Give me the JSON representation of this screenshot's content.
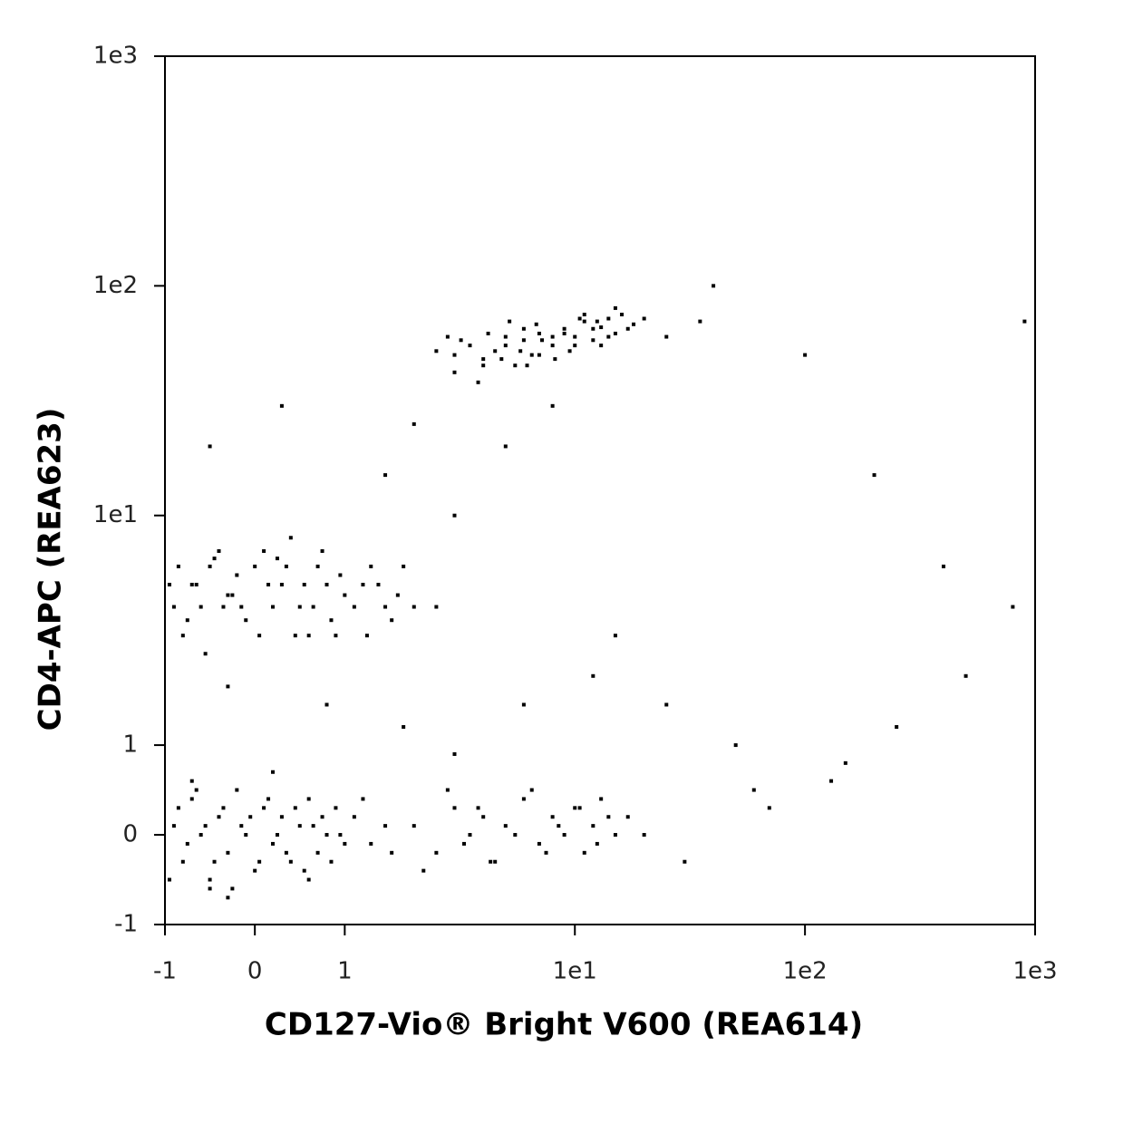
{
  "chart_data": {
    "type": "scatter",
    "xlabel": "CD127-Vio® Bright V600 (REA614)",
    "ylabel": "CD4-APC (REA623)",
    "xscale": "biexponential",
    "yscale": "biexponential",
    "xlim": [
      -1,
      1000
    ],
    "ylim": [
      -1,
      1000
    ],
    "xticks": [
      -1,
      0,
      1,
      {
        "value": 10,
        "label": "1e1"
      },
      {
        "value": 100,
        "label": "1e2"
      },
      {
        "value": 1000,
        "label": "1e3"
      }
    ],
    "yticks": [
      -1,
      0,
      1,
      {
        "value": 10,
        "label": "1e1"
      },
      {
        "value": 100,
        "label": "1e2"
      },
      {
        "value": 1000,
        "label": "1e3"
      }
    ],
    "color": "#000000",
    "x": [
      3,
      3.5,
      4,
      4.5,
      5,
      5.5,
      6,
      6.5,
      7,
      8,
      9,
      10,
      11,
      12,
      13,
      14,
      15,
      16,
      18,
      2.5,
      3,
      4,
      5,
      6,
      7,
      8,
      10,
      12,
      14,
      3.2,
      4.2,
      5.2,
      6.2,
      7.2,
      8.2,
      9.5,
      11,
      13,
      2.8,
      3.8,
      4.8,
      5.8,
      6.8,
      9,
      10.5,
      12.5,
      15,
      17,
      20,
      25,
      -0.9,
      -0.7,
      -0.5,
      -0.3,
      -0.1,
      0.1,
      0.3,
      0.5,
      0.7,
      0.9,
      1.2,
      1.5,
      1.8,
      -0.8,
      -0.6,
      -0.4,
      -0.2,
      0,
      0.2,
      0.4,
      0.6,
      0.8,
      1,
      1.3,
      1.6,
      2,
      -0.95,
      -0.75,
      -0.45,
      -0.15,
      0.15,
      0.45,
      0.75,
      1.1,
      1.4,
      -0.85,
      -0.55,
      -0.25,
      0.05,
      0.35,
      0.65,
      0.95,
      1.25,
      1.7,
      -0.65,
      -0.35,
      0.25,
      0.55,
      0.85,
      2.5,
      -0.9,
      -0.8,
      -0.7,
      -0.6,
      -0.5,
      -0.4,
      -0.3,
      -0.2,
      -0.1,
      0,
      0.1,
      0.2,
      0.3,
      0.4,
      0.5,
      0.6,
      0.7,
      0.8,
      0.9,
      1,
      -0.95,
      -0.85,
      -0.75,
      -0.65,
      -0.55,
      -0.45,
      -0.35,
      -0.25,
      -0.15,
      -0.05,
      0.05,
      0.15,
      0.25,
      0.35,
      0.45,
      0.55,
      0.65,
      0.75,
      0.85,
      0.95,
      1.1,
      1.3,
      1.5,
      -0.7,
      -0.3,
      0.2,
      0.6,
      1.2,
      1.6,
      -0.5,
      2,
      2.5,
      3,
      3.5,
      4,
      4.5,
      5,
      6,
      7,
      8,
      9,
      10,
      11,
      12,
      13,
      15,
      17,
      2.2,
      2.8,
      3.3,
      3.8,
      4.3,
      5.5,
      6.5,
      7.5,
      8.5,
      10.5,
      12.5,
      14,
      20,
      -0.5,
      0.3,
      1.5,
      2,
      3,
      5,
      8,
      15,
      25,
      40,
      60,
      100,
      150,
      250,
      400,
      800,
      200,
      70,
      30,
      12,
      6,
      3,
      1.8,
      0.8,
      -0.3,
      35,
      50,
      130,
      500,
      900
    ],
    "values": [
      50,
      55,
      48,
      52,
      60,
      45,
      58,
      50,
      62,
      55,
      65,
      60,
      70,
      58,
      66,
      72,
      62,
      75,
      68,
      52,
      42,
      45,
      55,
      65,
      50,
      60,
      55,
      65,
      60,
      58,
      62,
      70,
      45,
      58,
      48,
      52,
      75,
      55,
      60,
      38,
      48,
      52,
      68,
      62,
      72,
      70,
      80,
      65,
      72,
      60,
      4,
      5,
      6,
      4.5,
      3.5,
      7,
      5,
      4,
      6,
      3,
      5,
      4,
      6,
      3,
      4,
      7,
      5.5,
      6,
      4,
      8,
      3,
      5,
      4.5,
      6,
      3.5,
      4,
      5,
      3.5,
      6.5,
      4,
      5,
      3,
      7,
      4,
      5,
      6,
      2.5,
      4.5,
      3,
      6,
      4,
      5.5,
      3,
      4.5,
      5,
      4,
      6.5,
      5,
      3.5,
      4,
      0.1,
      -0.3,
      0.4,
      0,
      -0.5,
      0.2,
      -0.2,
      0.5,
      0,
      -0.4,
      0.3,
      -0.1,
      0.2,
      -0.3,
      0.1,
      0.4,
      -0.2,
      0,
      0.3,
      -0.1,
      -0.5,
      0.3,
      -0.1,
      0.5,
      0.1,
      -0.3,
      0.3,
      -0.6,
      0.1,
      0.2,
      -0.3,
      0.4,
      0,
      -0.2,
      0.3,
      -0.4,
      0.1,
      0.2,
      -0.3,
      0,
      0.2,
      -0.1,
      0.1,
      0.6,
      -0.7,
      0.7,
      -0.5,
      0.4,
      -0.2,
      -0.6,
      0.1,
      -0.2,
      0.3,
      0,
      0.2,
      -0.3,
      0.1,
      0.4,
      -0.1,
      0.2,
      0,
      0.3,
      -0.2,
      0.1,
      0.4,
      0,
      0.2,
      -0.4,
      0.5,
      -0.1,
      0.3,
      -0.3,
      0,
      0.5,
      -0.2,
      0.1,
      0.3,
      -0.1,
      0.2,
      0,
      20,
      30,
      15,
      25,
      10,
      20,
      30,
      3,
      1.5,
      100,
      0.5,
      50,
      0.8,
      1.2,
      6,
      4,
      15,
      0.3,
      -0.3,
      2,
      1.5,
      0.9,
      1.2,
      1.5,
      1.8,
      70,
      1,
      0.6,
      2,
      70
    ]
  }
}
